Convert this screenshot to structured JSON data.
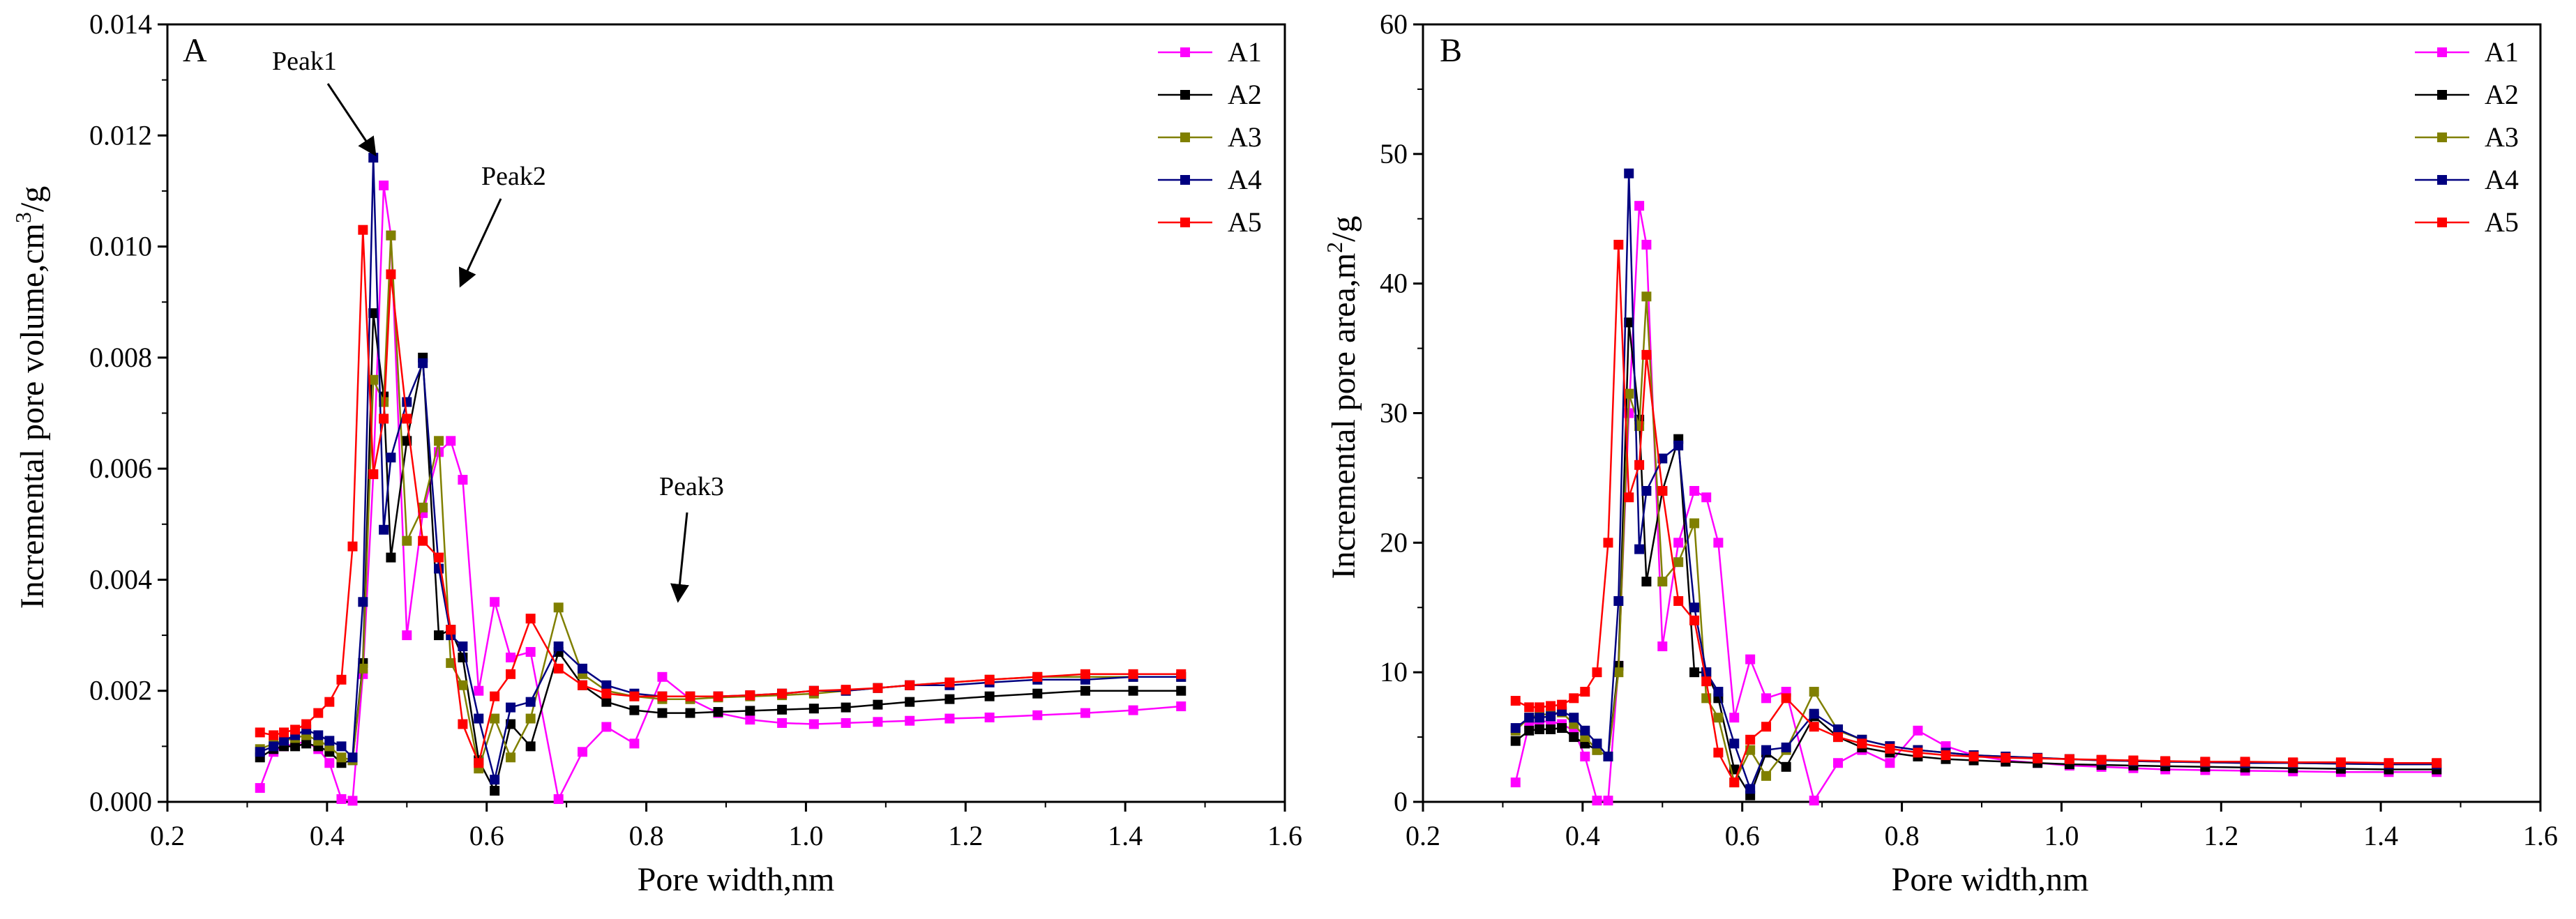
{
  "chart_data": [
    {
      "type": "line",
      "panel_label": "A",
      "xlabel": "Pore width,nm",
      "ylabel": "Incremental pore volume,cm",
      "ylabel_sup": "3",
      "ylabel_tail": "/g",
      "xlim": [
        0.2,
        1.6
      ],
      "ylim": [
        0,
        0.014
      ],
      "xticks": [
        0.2,
        0.4,
        0.6,
        0.8,
        1.0,
        1.2,
        1.4,
        1.6
      ],
      "xtick_labels": [
        "0.2",
        "0.4",
        "0.6",
        "0.8",
        "1.0",
        "1.2",
        "1.4",
        "1.6"
      ],
      "yticks": [
        0,
        0.002,
        0.004,
        0.006,
        0.008,
        0.01,
        0.012,
        0.014
      ],
      "ytick_labels": [
        "0.000",
        "0.002",
        "0.004",
        "0.006",
        "0.008",
        "0.010",
        "0.012",
        "0.014"
      ],
      "legend_position": "top-right",
      "x": [
        0.316,
        0.333,
        0.346,
        0.36,
        0.374,
        0.389,
        0.403,
        0.418,
        0.432,
        0.445,
        0.458,
        0.471,
        0.48,
        0.5,
        0.52,
        0.54,
        0.555,
        0.57,
        0.59,
        0.61,
        0.63,
        0.655,
        0.69,
        0.72,
        0.75,
        0.785,
        0.82,
        0.855,
        0.89,
        0.93,
        0.97,
        1.01,
        1.05,
        1.09,
        1.13,
        1.18,
        1.23,
        1.29,
        1.35,
        1.41,
        1.47
      ],
      "series": [
        {
          "name": "A1",
          "color": "#ff00ff",
          "values": [
            0.00025,
            0.0009,
            0.001,
            0.00105,
            0.00108,
            0.00095,
            0.0007,
            5e-05,
            2e-05,
            0.0023,
            0.0059,
            0.0111,
            0.0102,
            0.003,
            0.0052,
            0.0063,
            0.0065,
            0.0058,
            0.002,
            0.0036,
            0.0026,
            0.0027,
            5e-05,
            0.0009,
            0.00135,
            0.00105,
            0.00225,
            0.00185,
            0.0016,
            0.00148,
            0.00142,
            0.0014,
            0.00142,
            0.00144,
            0.00146,
            0.0015,
            0.00152,
            0.00156,
            0.0016,
            0.00165,
            0.00172
          ]
        },
        {
          "name": "A2",
          "color": "#000000",
          "values": [
            0.0008,
            0.00095,
            0.001,
            0.001,
            0.00105,
            0.001,
            0.0009,
            0.0007,
            0.00075,
            0.0025,
            0.0088,
            0.0073,
            0.0044,
            0.0065,
            0.008,
            0.003,
            0.0031,
            0.0026,
            0.00075,
            0.0002,
            0.0014,
            0.001,
            0.0027,
            0.0021,
            0.0018,
            0.00165,
            0.0016,
            0.0016,
            0.00162,
            0.00164,
            0.00166,
            0.00168,
            0.0017,
            0.00175,
            0.0018,
            0.00185,
            0.0019,
            0.00195,
            0.002,
            0.002,
            0.002
          ]
        },
        {
          "name": "A3",
          "color": "#808000",
          "values": [
            0.00095,
            0.00105,
            0.0011,
            0.00115,
            0.0012,
            0.0011,
            0.001,
            0.0008,
            0.00075,
            0.0024,
            0.0076,
            0.0072,
            0.0102,
            0.0047,
            0.0053,
            0.0065,
            0.0025,
            0.0021,
            0.0006,
            0.0015,
            0.0008,
            0.0015,
            0.0035,
            0.0023,
            0.002,
            0.0019,
            0.00185,
            0.00185,
            0.00188,
            0.0019,
            0.00192,
            0.00195,
            0.002,
            0.00205,
            0.0021,
            0.00215,
            0.0022,
            0.00225,
            0.00225,
            0.00225,
            0.00225
          ]
        },
        {
          "name": "A4",
          "color": "#000080",
          "values": [
            0.0009,
            0.001,
            0.0011,
            0.0012,
            0.0013,
            0.0012,
            0.0011,
            0.001,
            0.0008,
            0.0036,
            0.0116,
            0.0049,
            0.0062,
            0.0072,
            0.0079,
            0.0042,
            0.003,
            0.0028,
            0.0015,
            0.0004,
            0.0017,
            0.0018,
            0.0028,
            0.0024,
            0.0021,
            0.00195,
            0.0019,
            0.0019,
            0.0019,
            0.00192,
            0.00195,
            0.002,
            0.002,
            0.00205,
            0.0021,
            0.0021,
            0.00215,
            0.0022,
            0.0022,
            0.00225,
            0.00225
          ]
        },
        {
          "name": "A5",
          "color": "#ff0000",
          "values": [
            0.00125,
            0.0012,
            0.00125,
            0.0013,
            0.0014,
            0.0016,
            0.0018,
            0.0022,
            0.0046,
            0.0103,
            0.0059,
            0.0069,
            0.0095,
            0.0069,
            0.0047,
            0.0044,
            0.0031,
            0.0014,
            0.0007,
            0.0019,
            0.0023,
            0.0033,
            0.0024,
            0.0021,
            0.00195,
            0.0019,
            0.0019,
            0.0019,
            0.0019,
            0.00192,
            0.00195,
            0.002,
            0.00202,
            0.00205,
            0.0021,
            0.00215,
            0.0022,
            0.00225,
            0.0023,
            0.0023,
            0.0023
          ]
        }
      ],
      "annotations": [
        {
          "text": "Peak1",
          "x": 0.48,
          "y": 0.0116
        },
        {
          "text": "Peak2",
          "x": 0.548,
          "y": 0.0093
        },
        {
          "text": "Peak3",
          "x": 0.825,
          "y": 0.0036
        }
      ]
    },
    {
      "type": "line",
      "panel_label": "B",
      "xlabel": "Pore width,nm",
      "ylabel": "Incremental pore area,m",
      "ylabel_sup": "2",
      "ylabel_tail": "/g",
      "xlim": [
        0.2,
        1.6
      ],
      "ylim": [
        0,
        60
      ],
      "xticks": [
        0.2,
        0.4,
        0.6,
        0.8,
        1.0,
        1.2,
        1.4,
        1.6
      ],
      "xtick_labels": [
        "0.2",
        "0.4",
        "0.6",
        "0.8",
        "1.0",
        "1.2",
        "1.4",
        "1.6"
      ],
      "yticks": [
        0,
        10,
        20,
        30,
        40,
        50,
        60
      ],
      "ytick_labels": [
        "0",
        "10",
        "20",
        "30",
        "40",
        "50",
        "60"
      ],
      "legend_position": "top-right",
      "x": [
        0.316,
        0.333,
        0.346,
        0.36,
        0.374,
        0.389,
        0.403,
        0.418,
        0.432,
        0.445,
        0.458,
        0.471,
        0.48,
        0.5,
        0.52,
        0.54,
        0.555,
        0.57,
        0.59,
        0.61,
        0.63,
        0.655,
        0.69,
        0.72,
        0.75,
        0.785,
        0.82,
        0.855,
        0.89,
        0.93,
        0.97,
        1.01,
        1.05,
        1.09,
        1.13,
        1.18,
        1.23,
        1.29,
        1.35,
        1.41,
        1.47
      ],
      "series": [
        {
          "name": "A1",
          "color": "#ff00ff",
          "values": [
            1.5,
            6.0,
            6.2,
            6.2,
            6.0,
            5.5,
            3.5,
            0.1,
            0.1,
            10.5,
            30.0,
            46.0,
            43.0,
            12.0,
            20.0,
            24.0,
            23.5,
            20.0,
            6.5,
            11.0,
            8.0,
            8.5,
            0.1,
            3.0,
            4.0,
            3.0,
            5.5,
            4.3,
            3.6,
            3.2,
            3.0,
            2.8,
            2.7,
            2.6,
            2.5,
            2.45,
            2.4,
            2.35,
            2.3,
            2.3,
            2.3
          ]
        },
        {
          "name": "A2",
          "color": "#000000",
          "values": [
            4.7,
            5.5,
            5.6,
            5.6,
            5.7,
            5.0,
            4.5,
            4.0,
            3.5,
            10.5,
            37.0,
            29.5,
            17.0,
            24.0,
            28.0,
            10.0,
            10.0,
            8.0,
            2.5,
            0.5,
            3.8,
            2.7,
            6.6,
            5.0,
            4.2,
            3.8,
            3.5,
            3.3,
            3.2,
            3.1,
            3.0,
            2.9,
            2.85,
            2.8,
            2.75,
            2.7,
            2.65,
            2.6,
            2.55,
            2.5,
            2.5
          ]
        },
        {
          "name": "A3",
          "color": "#808000",
          "values": [
            5.5,
            6.5,
            6.7,
            6.8,
            6.9,
            6.0,
            5.0,
            4.0,
            3.5,
            10.0,
            31.5,
            29.0,
            39.0,
            17.0,
            18.5,
            21.5,
            8.0,
            6.5,
            1.5,
            4.0,
            2.0,
            4.0,
            8.5,
            5.5,
            4.8,
            4.3,
            4.0,
            3.8,
            3.6,
            3.5,
            3.4,
            3.3,
            3.2,
            3.15,
            3.1,
            3.05,
            3.0,
            3.0,
            2.95,
            2.9,
            2.9
          ]
        },
        {
          "name": "A4",
          "color": "#000080",
          "values": [
            5.7,
            6.5,
            6.5,
            6.6,
            7.0,
            6.5,
            5.5,
            4.5,
            3.5,
            15.5,
            48.5,
            19.5,
            24.0,
            26.5,
            27.5,
            15.0,
            10.0,
            8.5,
            4.5,
            1.0,
            4.0,
            4.2,
            6.8,
            5.6,
            4.8,
            4.3,
            4.0,
            3.8,
            3.6,
            3.5,
            3.4,
            3.3,
            3.2,
            3.15,
            3.1,
            3.05,
            3.0,
            3.0,
            2.95,
            2.9,
            2.9
          ]
        },
        {
          "name": "A5",
          "color": "#ff0000",
          "values": [
            7.8,
            7.3,
            7.3,
            7.4,
            7.5,
            8.0,
            8.5,
            10.0,
            20.0,
            43.0,
            23.5,
            26.0,
            34.5,
            24.0,
            15.5,
            14.0,
            9.3,
            3.8,
            1.5,
            4.8,
            5.8,
            8.0,
            5.8,
            5.0,
            4.5,
            4.1,
            3.8,
            3.6,
            3.5,
            3.4,
            3.35,
            3.3,
            3.25,
            3.2,
            3.15,
            3.1,
            3.1,
            3.05,
            3.05,
            3.0,
            3.0
          ]
        }
      ]
    }
  ]
}
